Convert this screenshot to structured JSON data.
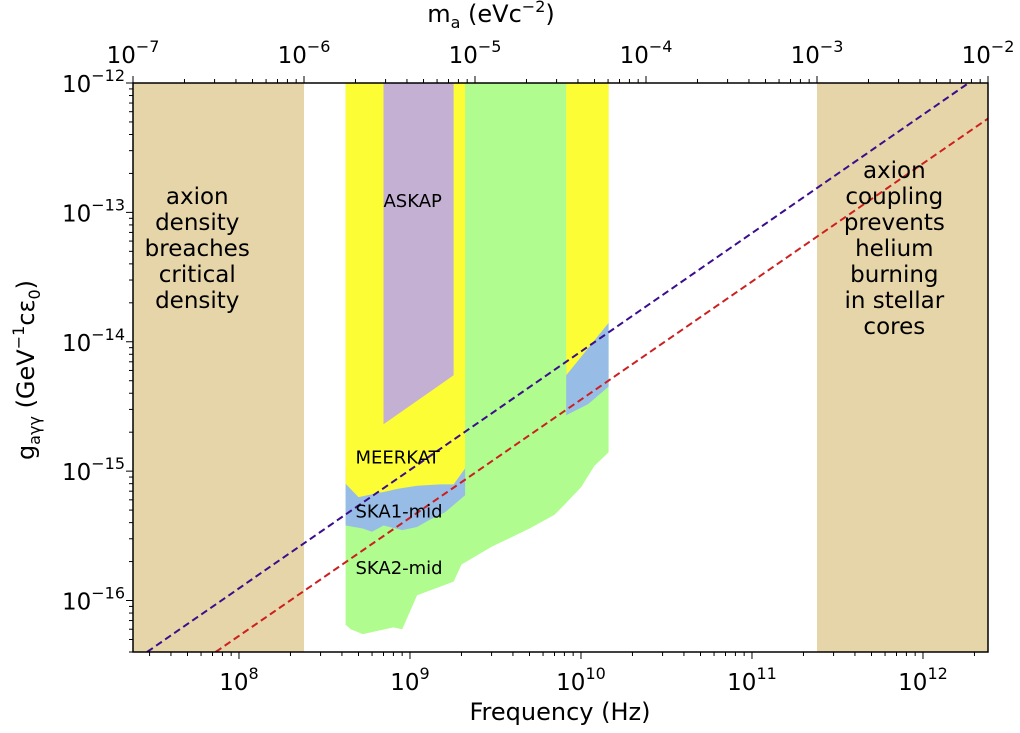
{
  "chart_data": {
    "type": "area",
    "xlabel": "Frequency (Hz)",
    "ylabel": "g_aγγ (GeV^-1 cε_0)",
    "ylabel_parts": {
      "main": "g",
      "sub": "aγγ",
      "unit_open": "  (GeV",
      "unit_sup": "−1",
      "unit_mid": "cε",
      "unit_sub": "0",
      "unit_close": ")"
    },
    "top_axis_label": "m_a (eVc^-2)",
    "top_axis_label_parts": {
      "main": "m",
      "sub": "a",
      "unit_open": " (eVc",
      "unit_sup": "−2",
      "unit_close": ")"
    },
    "xscale": "log",
    "yscale": "log",
    "xlim": [
      24000000.0,
      2400000000000.0
    ],
    "ylim": [
      4e-17,
      1e-12
    ],
    "top_axis_lim_eV": [
      1e-07,
      0.01
    ],
    "x_ticks": [
      {
        "value": 100000000.0,
        "base": "10",
        "exp": "8"
      },
      {
        "value": 1000000000.0,
        "base": "10",
        "exp": "9"
      },
      {
        "value": 10000000000.0,
        "base": "10",
        "exp": "10"
      },
      {
        "value": 100000000000.0,
        "base": "10",
        "exp": "11"
      },
      {
        "value": 1000000000000.0,
        "base": "10",
        "exp": "12"
      }
    ],
    "y_ticks": [
      {
        "value": 1e-12,
        "base": "10",
        "exp": "−12"
      },
      {
        "value": 1e-13,
        "base": "10",
        "exp": "−13"
      },
      {
        "value": 1e-14,
        "base": "10",
        "exp": "−14"
      },
      {
        "value": 1e-15,
        "base": "10",
        "exp": "−15"
      },
      {
        "value": 1e-16,
        "base": "10",
        "exp": "−16"
      }
    ],
    "top_ticks": [
      {
        "value": 1e-07,
        "base": "10",
        "exp": "−7"
      },
      {
        "value": 1e-06,
        "base": "10",
        "exp": "−6"
      },
      {
        "value": 1e-05,
        "base": "10",
        "exp": "−5"
      },
      {
        "value": 0.0001,
        "base": "10",
        "exp": "−4"
      },
      {
        "value": 0.001,
        "base": "10",
        "exp": "−3"
      },
      {
        "value": 0.01,
        "base": "10",
        "exp": "−2"
      }
    ],
    "excluded_regions": [
      {
        "name": "left-exclusion",
        "x_range": [
          24000000.0,
          240000000.0
        ],
        "color": "#e6d5a8",
        "label_lines": [
          "axion",
          "density",
          "breaches",
          "critical",
          "density"
        ],
        "label_at": [
          57000000.0,
          4.6e-14
        ]
      },
      {
        "name": "right-exclusion",
        "x_range": [
          240000000000.0,
          2400000000000.0
        ],
        "color": "#e6d5a8",
        "label_lines": [
          "axion",
          "coupling",
          "prevents",
          "helium",
          "burning",
          "in stellar",
          "cores"
        ],
        "label_at": [
          680000000000.0,
          4.6e-14
        ]
      }
    ],
    "series": [
      {
        "name": "SKA2-mid",
        "color": "#b0fc8e",
        "label_at": [
          480000000.0,
          1.6e-16
        ],
        "polygon": [
          [
            420000000.0,
            1e-12
          ],
          [
            2100000000.0,
            1e-12
          ],
          [
            2100000000.0,
            1e-12
          ],
          [
            8000000000.0,
            1e-12
          ],
          [
            8000000000.0,
            1e-12
          ],
          [
            14500000000.0,
            1e-12
          ],
          [
            14500000000.0,
            1.4e-15
          ],
          [
            12000000000.0,
            1.1e-15
          ],
          [
            10000000000.0,
            7.5e-16
          ],
          [
            8000000000.0,
            5.5e-16
          ],
          [
            7000000000.0,
            4.6e-16
          ],
          [
            5000000000.0,
            3.6e-16
          ],
          [
            3000000000.0,
            2.6e-16
          ],
          [
            2000000000.0,
            1.9e-16
          ],
          [
            1800000000.0,
            1.4e-16
          ],
          [
            1100000000.0,
            1.1e-16
          ],
          [
            900000000.0,
            6e-17
          ],
          [
            800000000.0,
            6.2e-17
          ],
          [
            530000000.0,
            5.5e-17
          ],
          [
            450000000.0,
            6e-17
          ],
          [
            420000000.0,
            6.5e-17
          ]
        ]
      },
      {
        "name": "SKA1-mid",
        "color": "#97bde6",
        "label_at": [
          480000000.0,
          4.4e-16
        ],
        "polygon": [
          [
            420000000.0,
            1.1e-15
          ],
          [
            1800000000.0,
            1.1e-15
          ],
          [
            1800000000.0,
            1.1e-15
          ],
          [
            2100000000.0,
            1.1e-15
          ],
          [
            2100000000.0,
            6.5e-16
          ],
          [
            1600000000.0,
            4.8e-16
          ],
          [
            1300000000.0,
            4.2e-16
          ],
          [
            1100000000.0,
            3.7e-16
          ],
          [
            900000000.0,
            3.5e-16
          ],
          [
            700000000.0,
            3.8e-16
          ],
          [
            600000000.0,
            3.4e-16
          ],
          [
            530000000.0,
            3.6e-16
          ],
          [
            420000000.0,
            3.8e-16
          ]
        ],
        "polygon2": [
          [
            8200000000.0,
            6.5e-15
          ],
          [
            14500000000.0,
            1.4e-14
          ],
          [
            14500000000.0,
            4.5e-15
          ],
          [
            11000000000.0,
            3.3e-15
          ],
          [
            8200000000.0,
            2.7e-15
          ]
        ]
      },
      {
        "name": "MEERKAT",
        "color": "#fdfd36",
        "label_at": [
          480000000.0,
          1.15e-15
        ],
        "polygon": [
          [
            420000000.0,
            1e-12
          ],
          [
            2100000000.0,
            1e-12
          ],
          [
            2100000000.0,
            1.05e-15
          ],
          [
            1800000000.0,
            7.9e-16
          ],
          [
            1500000000.0,
            7.9e-16
          ],
          [
            1100000000.0,
            7.7e-16
          ],
          [
            850000000.0,
            7.3e-16
          ],
          [
            700000000.0,
            6.9e-16
          ],
          [
            500000000.0,
            6.3e-16
          ],
          [
            420000000.0,
            8e-16
          ]
        ],
        "polygon2": [
          [
            8200000000.0,
            1e-12
          ],
          [
            14500000000.0,
            1e-12
          ],
          [
            14500000000.0,
            1.4e-14
          ],
          [
            8200000000.0,
            5.5e-15
          ]
        ]
      },
      {
        "name": "ASKAP",
        "color": "#c4b0d2",
        "label_at": [
          700000000.0,
          1.1e-13
        ],
        "polygon": [
          [
            700000000.0,
            1e-12
          ],
          [
            1800000000.0,
            1e-12
          ],
          [
            1800000000.0,
            5.5e-15
          ],
          [
            700000000.0,
            2.3e-15
          ]
        ]
      }
    ],
    "lines": [
      {
        "name": "upper-dashed-line",
        "color": "#3a0d8c",
        "dash": true,
        "points": [
          [
            29000000.0,
            4e-17
          ],
          [
            1850000000000.0,
            1e-12
          ]
        ]
      },
      {
        "name": "lower-dashed-line",
        "color": "#cc2020",
        "dash": true,
        "points": [
          [
            73000000.0,
            4e-17
          ],
          [
            4800000000000.0,
            1e-12
          ]
        ]
      }
    ],
    "grid": false
  }
}
